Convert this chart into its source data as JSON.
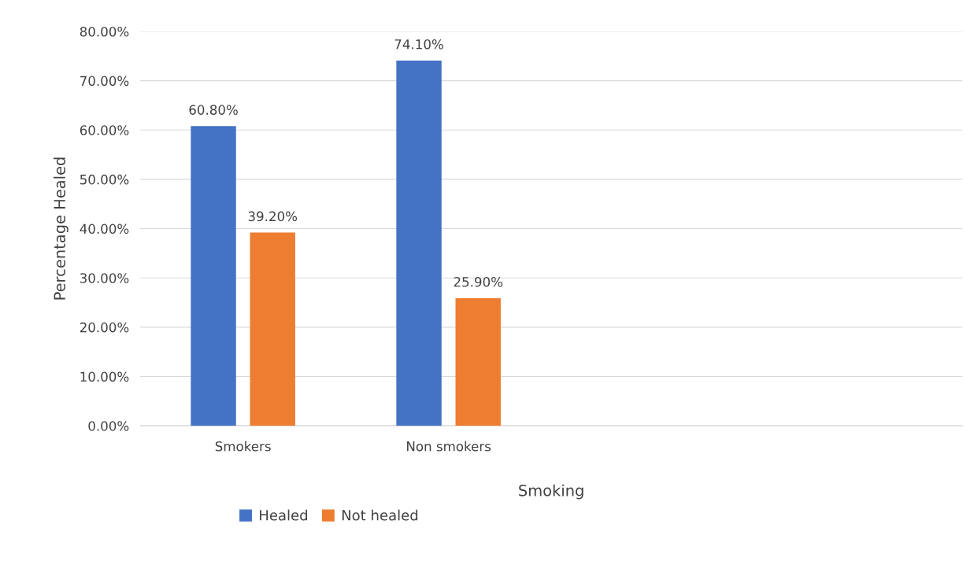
{
  "chart_data": {
    "type": "bar",
    "xlabel": "Smoking",
    "ylabel": "Percentage Healed",
    "categories": [
      "Smokers",
      "Non smokers",
      null,
      null
    ],
    "series": [
      {
        "name": "Healed",
        "color": "#4472c4",
        "values": [
          60.8,
          74.1,
          null,
          null
        ],
        "value_labels": [
          "60.80%",
          "74.10%",
          null,
          null
        ]
      },
      {
        "name": "Not healed",
        "color": "#ed7d31",
        "values": [
          39.2,
          25.9,
          null,
          null
        ],
        "value_labels": [
          "39.20%",
          "25.90%",
          null,
          null
        ]
      }
    ],
    "ylim": [
      0,
      80
    ],
    "yticks": [
      {
        "value": 0,
        "label": "0.00%"
      },
      {
        "value": 10,
        "label": "10.00%"
      },
      {
        "value": 20,
        "label": "20.00%"
      },
      {
        "value": 30,
        "label": "30.00%"
      },
      {
        "value": 40,
        "label": "40.00%"
      },
      {
        "value": 50,
        "label": "50.00%"
      },
      {
        "value": 60,
        "label": "60.00%"
      },
      {
        "value": 70,
        "label": "70.00%"
      },
      {
        "value": 80,
        "label": "80.00%"
      }
    ],
    "grid": "y",
    "legend": "bottom"
  }
}
